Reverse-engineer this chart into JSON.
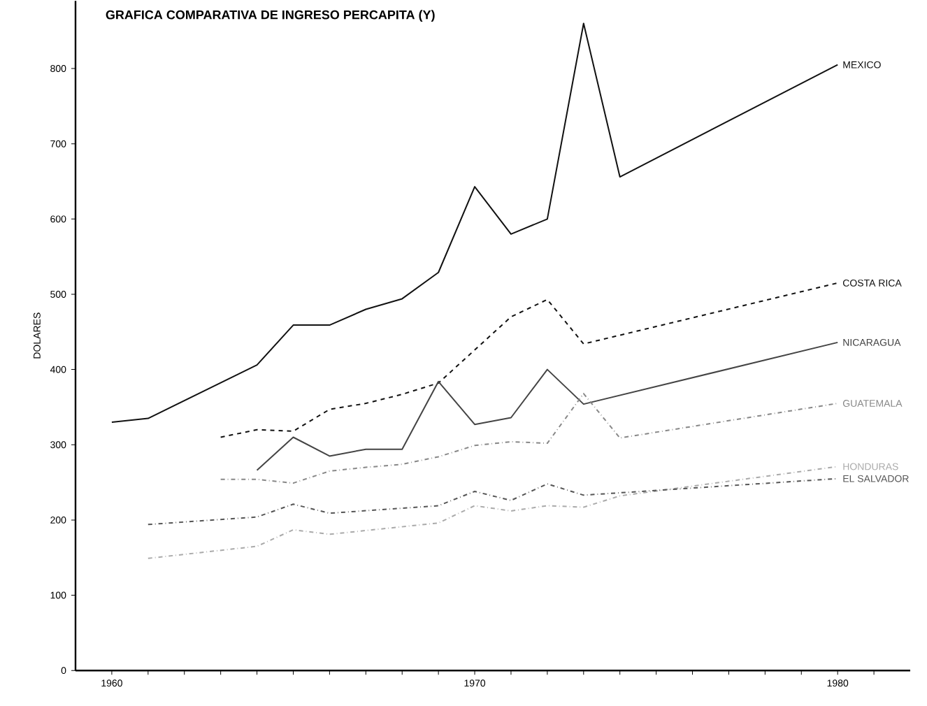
{
  "chart_data": {
    "type": "line",
    "title": "GRAFICA COMPARATIVA DE INGRESO PERCAPITA (Y)",
    "ylabel": "DOLARES",
    "xlim": [
      1959,
      1982
    ],
    "ylim": [
      0,
      890
    ],
    "xticks": [
      1960,
      {
        "value": 1961,
        "label": null
      },
      {
        "value": 1962,
        "label": null
      },
      {
        "value": 1963,
        "label": null
      },
      {
        "value": 1964,
        "label": null
      },
      {
        "value": 1965,
        "label": null
      },
      {
        "value": 1966,
        "label": null
      },
      {
        "value": 1967,
        "label": null
      },
      {
        "value": 1968,
        "label": null
      },
      {
        "value": 1969,
        "label": null
      },
      1970,
      {
        "value": 1971,
        "label": null
      },
      {
        "value": 1972,
        "label": null
      },
      {
        "value": 1973,
        "label": null
      },
      {
        "value": 1974,
        "label": null
      },
      {
        "value": 1975,
        "label": null
      },
      {
        "value": 1976,
        "label": null
      },
      {
        "value": 1977,
        "label": null
      },
      {
        "value": 1978,
        "label": null
      },
      {
        "value": 1979,
        "label": null
      },
      1980,
      {
        "value": 1981,
        "label": null
      }
    ],
    "yticks": [
      0,
      100,
      200,
      300,
      400,
      500,
      600,
      700,
      800
    ],
    "series": [
      {
        "name": "MEXICO",
        "color": "#111111",
        "line_style": "solid",
        "x": [
          1960,
          1961,
          1964,
          1965,
          1966,
          1967,
          1968,
          1969,
          1970,
          1971,
          1972,
          1973,
          1974,
          1980
        ],
        "values": [
          330,
          335,
          406,
          459,
          459,
          480,
          494,
          529,
          643,
          580,
          600,
          860,
          656,
          805
        ]
      },
      {
        "name": "COSTA RICA",
        "color": "#111111",
        "line_style": "dashed",
        "x": [
          1963,
          1964,
          1965,
          1966,
          1967,
          1968,
          1969,
          1971,
          1972,
          1973,
          1980
        ],
        "values": [
          310,
          320,
          318,
          347,
          355,
          367,
          382,
          470,
          493,
          434,
          515
        ]
      },
      {
        "name": "NICARAGUA",
        "color": "#444444",
        "line_style": "solid",
        "x": [
          1964,
          1965,
          1966,
          1967,
          1968,
          1969,
          1970,
          1971,
          1972,
          1973,
          1980
        ],
        "values": [
          266,
          310,
          285,
          294,
          294,
          384,
          327,
          336,
          400,
          354,
          436
        ]
      },
      {
        "name": "GUATEMALA",
        "color": "#888888",
        "line_style": "dashdot",
        "x": [
          1963,
          1964,
          1965,
          1966,
          1967,
          1968,
          1969,
          1970,
          1971,
          1972,
          1973,
          1974,
          1980
        ],
        "values": [
          254,
          254,
          249,
          265,
          270,
          274,
          284,
          299,
          304,
          302,
          368,
          309,
          355
        ]
      },
      {
        "name": "HONDURAS",
        "color": "#aaaaaa",
        "line_style": "dashdot",
        "x": [
          1961,
          1964,
          1965,
          1966,
          1969,
          1970,
          1971,
          1972,
          1973,
          1974,
          1980
        ],
        "values": [
          149,
          165,
          187,
          181,
          196,
          219,
          212,
          219,
          217,
          232,
          271
        ]
      },
      {
        "name": "EL SALVADOR",
        "color": "#555555",
        "line_style": "dashdot",
        "x": [
          1961,
          1964,
          1965,
          1966,
          1969,
          1970,
          1971,
          1972,
          1973,
          1980
        ],
        "values": [
          194,
          204,
          221,
          209,
          219,
          238,
          226,
          248,
          233,
          255
        ]
      }
    ]
  }
}
